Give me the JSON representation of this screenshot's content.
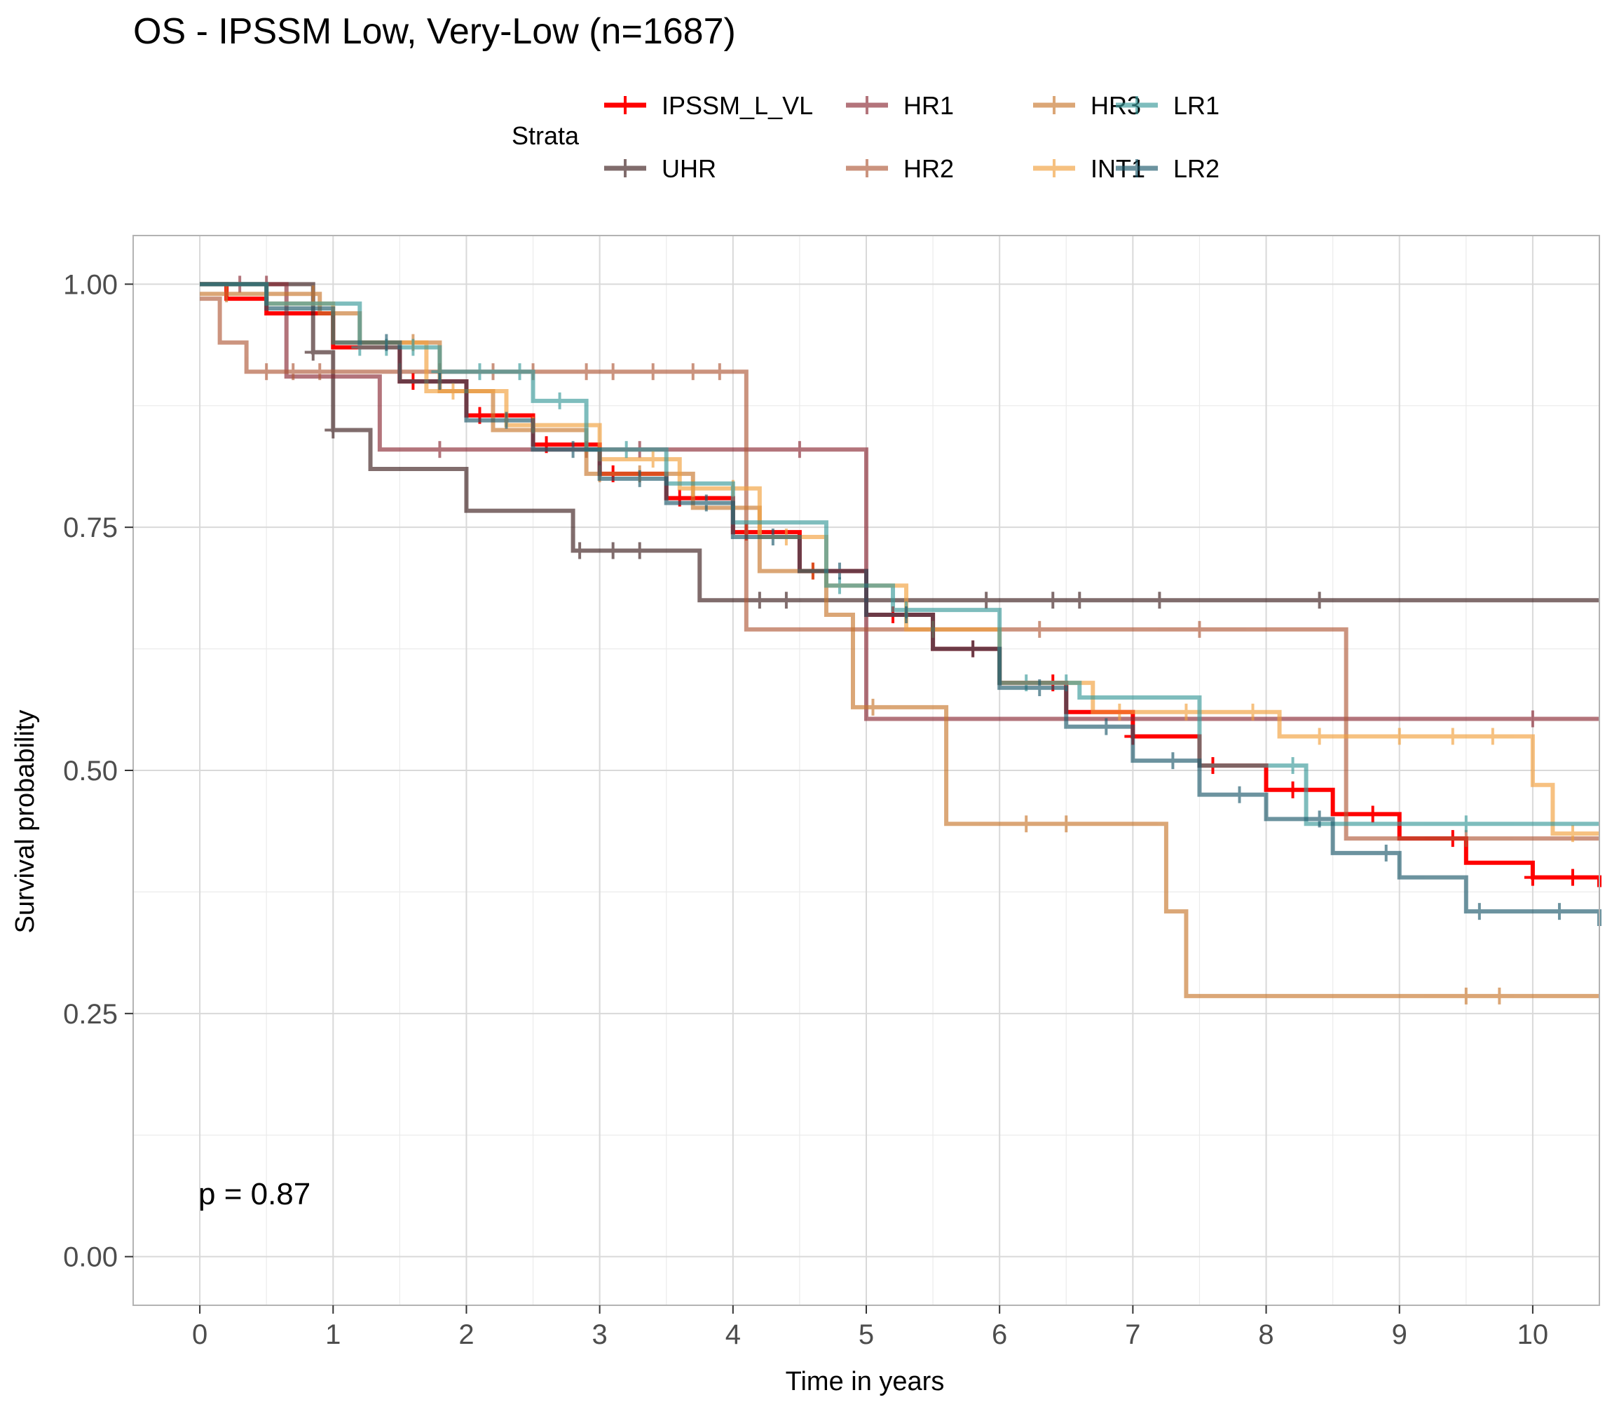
{
  "chart_data": {
    "type": "line",
    "title": "OS - IPSSM Low, Very-Low (n=1687)",
    "xlabel": "Time in years",
    "ylabel": "Survival probability",
    "xlim": [
      -0.5,
      10.5
    ],
    "ylim": [
      -0.05,
      1.05
    ],
    "x_ticks": [
      "0",
      "1",
      "2",
      "3",
      "4",
      "5",
      "6",
      "7",
      "8",
      "9",
      "10"
    ],
    "y_ticks": [
      "0.00",
      "0.25",
      "0.50",
      "0.75",
      "1.00"
    ],
    "grid": true,
    "legend_title": "Strata",
    "legend_position": "top",
    "annotation": "p = 0.87",
    "series": [
      {
        "name": "IPSSM_L_VL",
        "color": "#ff0000",
        "opacity": 1.0,
        "times": [
          0,
          0.2,
          0.5,
          1,
          1.5,
          2,
          2.5,
          3,
          3.5,
          4,
          4.5,
          5,
          5.5,
          6,
          6.5,
          7,
          7.5,
          8,
          8.5,
          9,
          9.5,
          10,
          10.5
        ],
        "surv": [
          1,
          0.985,
          0.97,
          0.935,
          0.9,
          0.865,
          0.835,
          0.805,
          0.78,
          0.745,
          0.705,
          0.66,
          0.625,
          0.59,
          0.56,
          0.535,
          0.505,
          0.48,
          0.455,
          0.43,
          0.405,
          0.39,
          0.38
        ],
        "censor": [
          1.6,
          2.1,
          2.6,
          3.1,
          3.6,
          4.1,
          4.6,
          5.2,
          5.8,
          6.4,
          7.0,
          7.6,
          8.2,
          8.8,
          9.4,
          10.0,
          10.3
        ]
      },
      {
        "name": "UHR",
        "color": "#3d1f1f",
        "opacity": 0.65,
        "times": [
          0,
          0.85,
          1.0,
          1.28,
          2.0,
          2.8,
          3.75,
          10.5
        ],
        "surv": [
          1,
          0.93,
          0.85,
          0.81,
          0.767,
          0.726,
          0.675,
          0.675
        ],
        "censor": [
          0.85,
          1.0,
          2.85,
          3.1,
          3.3,
          4.2,
          4.4,
          5.9,
          6.4,
          6.6,
          7.2,
          8.4
        ]
      },
      {
        "name": "HR1",
        "color": "#8b2a35",
        "opacity": 0.65,
        "times": [
          0,
          0.65,
          1.35,
          5.0,
          10.5
        ],
        "surv": [
          1,
          0.905,
          0.83,
          0.553,
          0.553
        ],
        "censor": [
          0.3,
          0.5,
          1.8,
          2.9,
          3.3,
          4.5,
          10.0
        ]
      },
      {
        "name": "HR2",
        "color": "#b05a3a",
        "opacity": 0.65,
        "times": [
          0,
          0.15,
          0.35,
          1.0,
          4.1,
          4.4,
          8.6,
          10.5
        ],
        "surv": [
          0.985,
          0.94,
          0.91,
          0.91,
          0.645,
          0.645,
          0.43,
          0.43
        ],
        "censor": [
          0.5,
          0.7,
          0.9,
          1.5,
          1.8,
          2.2,
          2.5,
          2.9,
          3.1,
          3.4,
          3.7,
          3.9,
          6.3,
          7.5,
          9.5
        ]
      },
      {
        "name": "HR3",
        "color": "#c8782e",
        "opacity": 0.65,
        "times": [
          0,
          0.9,
          1.2,
          1.8,
          2.2,
          2.9,
          3.7,
          4.2,
          4.7,
          4.9,
          5.6,
          7.25,
          7.4,
          10.5
        ],
        "surv": [
          0.99,
          0.97,
          0.94,
          0.89,
          0.85,
          0.805,
          0.77,
          0.705,
          0.66,
          0.565,
          0.445,
          0.355,
          0.268,
          0.268
        ],
        "censor": [
          0.2,
          0.85,
          1.6,
          3.0,
          3.3,
          4.6,
          5.05,
          6.2,
          6.5,
          9.5,
          9.75
        ]
      },
      {
        "name": "INT1",
        "color": "#f2a03d",
        "opacity": 0.65,
        "times": [
          0,
          0.5,
          1.0,
          1.7,
          2.3,
          3.0,
          3.6,
          4.2,
          4.7,
          5.3,
          6.0,
          6.7,
          8.1,
          10.0,
          10.15,
          10.5
        ],
        "surv": [
          1,
          0.98,
          0.94,
          0.89,
          0.855,
          0.82,
          0.79,
          0.74,
          0.69,
          0.645,
          0.59,
          0.56,
          0.535,
          0.485,
          0.435,
          0.435
        ],
        "censor": [
          1.9,
          2.5,
          3.4,
          3.7,
          4.0,
          4.4,
          5.5,
          6.9,
          7.4,
          7.9,
          8.4,
          9.0,
          9.4,
          9.7,
          10.3
        ]
      },
      {
        "name": "LR1",
        "color": "#3a9a9a",
        "opacity": 0.65,
        "times": [
          0,
          0.5,
          1.2,
          1.8,
          2.5,
          2.9,
          3.5,
          4.0,
          4.7,
          5.2,
          6.0,
          6.6,
          7.5,
          8.3,
          10.5
        ],
        "surv": [
          1,
          0.98,
          0.935,
          0.91,
          0.88,
          0.83,
          0.795,
          0.755,
          0.69,
          0.665,
          0.59,
          0.575,
          0.505,
          0.445,
          0.445
        ],
        "censor": [
          1.2,
          1.4,
          1.6,
          1.8,
          2.1,
          2.4,
          2.7,
          3.2,
          4.8,
          5.3,
          6.2,
          6.5,
          8.2,
          9.5
        ]
      },
      {
        "name": "LR2",
        "color": "#1e5a6c",
        "opacity": 0.65,
        "times": [
          0,
          0.5,
          1.0,
          1.5,
          2.0,
          2.5,
          3.0,
          3.5,
          4.0,
          4.5,
          5.0,
          5.5,
          6.0,
          6.5,
          7.0,
          7.5,
          8.0,
          8.5,
          9.0,
          9.5,
          9.9,
          10.5
        ],
        "surv": [
          1,
          0.975,
          0.94,
          0.9,
          0.86,
          0.83,
          0.8,
          0.775,
          0.74,
          0.705,
          0.66,
          0.625,
          0.585,
          0.545,
          0.51,
          0.475,
          0.45,
          0.415,
          0.39,
          0.355,
          0.355,
          0.34
        ],
        "censor": [
          1.4,
          1.8,
          2.3,
          2.8,
          3.3,
          3.8,
          4.3,
          4.8,
          5.3,
          5.8,
          6.3,
          6.8,
          7.3,
          7.8,
          8.4,
          8.9,
          9.6,
          10.2
        ]
      }
    ]
  }
}
